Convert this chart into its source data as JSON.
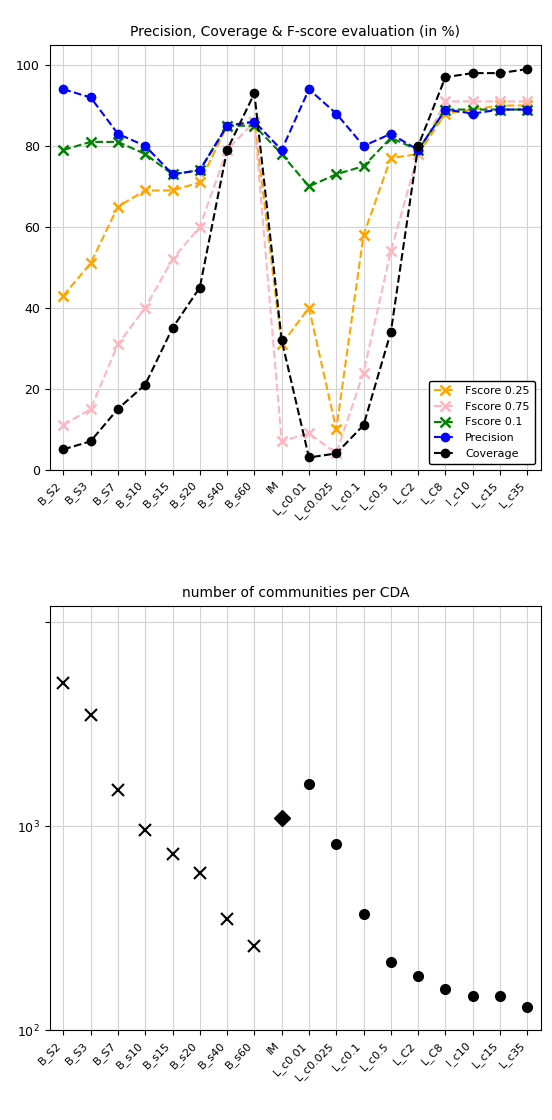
{
  "categories": [
    "B_S2",
    "B_S3",
    "B_S7",
    "B_s10",
    "B_s15",
    "B_s20",
    "B_s40",
    "B_s60",
    "IM",
    "L_c0.01",
    "L_c0.025",
    "L_c0.1",
    "L_c0.5",
    "L_C2",
    "L_C8",
    "l_c10",
    "L_c15",
    "L_c35"
  ],
  "precision": [
    94,
    92,
    83,
    80,
    73,
    74,
    85,
    86,
    79,
    94,
    88,
    80,
    83,
    79,
    89,
    88,
    89,
    89
  ],
  "coverage": [
    5,
    7,
    15,
    21,
    35,
    45,
    79,
    93,
    32,
    3,
    4,
    11,
    34,
    80,
    97,
    98,
    98,
    99
  ],
  "fscore_025": [
    43,
    51,
    65,
    69,
    69,
    71,
    85,
    86,
    31,
    40,
    10,
    58,
    77,
    78,
    88,
    89,
    90,
    90
  ],
  "fscore_075": [
    11,
    15,
    31,
    40,
    52,
    60,
    79,
    86,
    7,
    9,
    4,
    24,
    54,
    78,
    91,
    91,
    91,
    91
  ],
  "fscore_01": [
    79,
    81,
    81,
    78,
    73,
    74,
    85,
    85,
    78,
    70,
    73,
    75,
    82,
    79,
    89,
    89,
    89,
    89
  ],
  "communities": [
    5000,
    3500,
    1500,
    960,
    730,
    590,
    350,
    260,
    1100,
    1600,
    820,
    370,
    215,
    185,
    160,
    148,
    148,
    130
  ],
  "community_markers": [
    "x",
    "x",
    "x",
    "x",
    "x",
    "x",
    "x",
    "x",
    "D",
    "o",
    "o",
    "o",
    "o",
    "o",
    "o",
    "o",
    "o",
    "o"
  ],
  "top_title": "Precision, Coverage & F-score evaluation (in %)",
  "bottom_title": "number of communities per CDA",
  "precision_color": "#0000ff",
  "coverage_color": "#000000",
  "fscore025_color": "#FFA500",
  "fscore075_color": "#FFB6C1",
  "fscore01_color": "#008000"
}
